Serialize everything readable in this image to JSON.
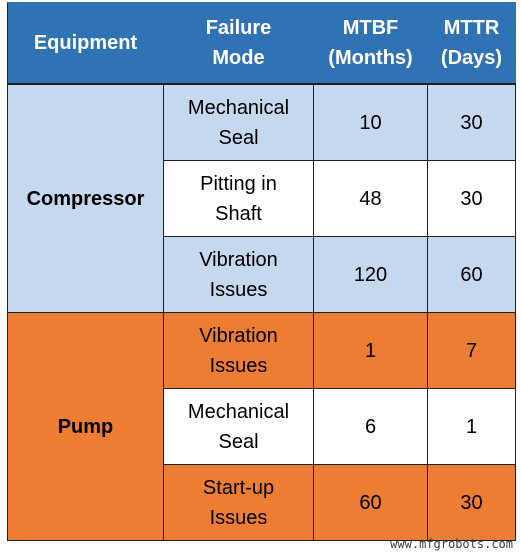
{
  "table": {
    "headers": {
      "equipment": "Equipment",
      "failure_mode": "Failure\nMode",
      "mtbf": "MTBF\n(Months)",
      "mttr": "MTTR\n(Days)"
    },
    "groups": [
      {
        "equipment": "Compressor",
        "color": "#c5d8ee",
        "rows": [
          {
            "failure_mode": "Mechanical\nSeal",
            "mtbf": "10",
            "mttr": "30",
            "shade": "blue"
          },
          {
            "failure_mode": "Pitting in\nShaft",
            "mtbf": "48",
            "mttr": "30",
            "shade": "white"
          },
          {
            "failure_mode": "Vibration\nIssues",
            "mtbf": "120",
            "mttr": "60",
            "shade": "blue"
          }
        ]
      },
      {
        "equipment": "Pump",
        "color": "#ec7d33",
        "rows": [
          {
            "failure_mode": "Vibration\nIssues",
            "mtbf": "1",
            "mttr": "7",
            "shade": "orange"
          },
          {
            "failure_mode": "Mechanical\nSeal",
            "mtbf": "6",
            "mttr": "1",
            "shade": "white"
          },
          {
            "failure_mode": "Start-up\nIssues",
            "mtbf": "60",
            "mttr": "30",
            "shade": "orange"
          }
        ]
      }
    ]
  },
  "watermark": "www.mfgrobots.com",
  "colors": {
    "header": "#2f73b5",
    "compressor": "#c5d8ee",
    "pump": "#ec7d33"
  }
}
